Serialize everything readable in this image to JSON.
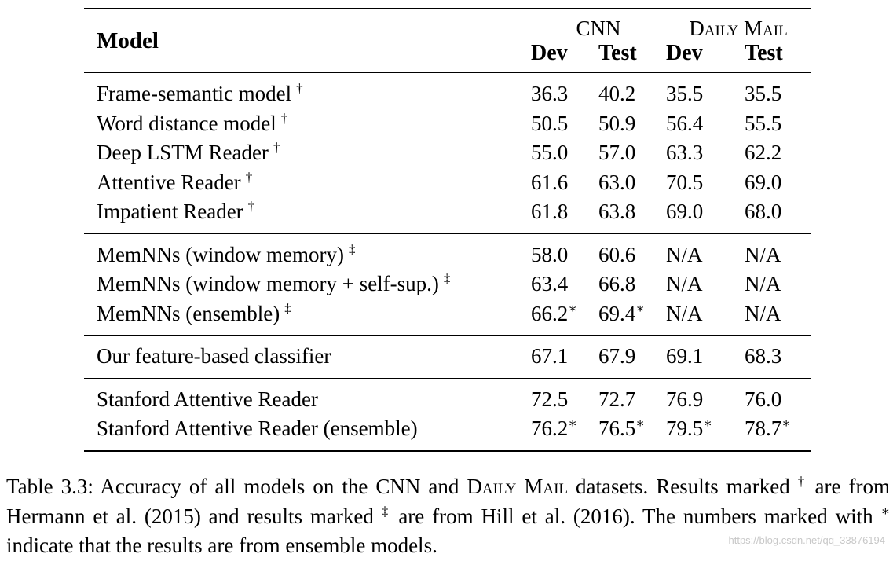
{
  "table": {
    "model_header": "Model",
    "groups": {
      "cnn": "CNN",
      "daily_mail": "Daily Mail"
    },
    "sub_headers": {
      "cnn_dev": "Dev",
      "cnn_test": "Test",
      "dm_dev": "Dev",
      "dm_test": "Test"
    },
    "sections": [
      {
        "rows": [
          {
            "model": "Frame-semantic model",
            "mark": "†",
            "cnn_dev": "36.3",
            "cnn_test": "40.2",
            "dm_dev": "35.5",
            "dm_test": "35.5"
          },
          {
            "model": "Word distance model",
            "mark": "†",
            "cnn_dev": "50.5",
            "cnn_test": "50.9",
            "dm_dev": "56.4",
            "dm_test": "55.5"
          },
          {
            "model": "Deep LSTM Reader",
            "mark": "†",
            "cnn_dev": "55.0",
            "cnn_test": "57.0",
            "dm_dev": "63.3",
            "dm_test": "62.2"
          },
          {
            "model": "Attentive Reader",
            "mark": "†",
            "cnn_dev": "61.6",
            "cnn_test": "63.0",
            "dm_dev": "70.5",
            "dm_test": "69.0"
          },
          {
            "model": "Impatient Reader",
            "mark": "†",
            "cnn_dev": "61.8",
            "cnn_test": "63.8",
            "dm_dev": "69.0",
            "dm_test": "68.0"
          }
        ]
      },
      {
        "rows": [
          {
            "model": "MemNNs (window memory)",
            "mark": "‡",
            "cnn_dev": "58.0",
            "cnn_test": "60.6",
            "dm_dev": "N/A",
            "dm_test": "N/A"
          },
          {
            "model": "MemNNs (window memory + self-sup.)",
            "mark": "‡",
            "cnn_dev": "63.4",
            "cnn_test": "66.8",
            "dm_dev": "N/A",
            "dm_test": "N/A"
          },
          {
            "model": "MemNNs (ensemble)",
            "mark": "‡",
            "cnn_dev": "66.2",
            "cnn_dev_star": "∗",
            "cnn_test": "69.4",
            "cnn_test_star": "∗",
            "dm_dev": "N/A",
            "dm_test": "N/A"
          }
        ]
      },
      {
        "rows": [
          {
            "model": "Our feature-based classifier",
            "cnn_dev": "67.1",
            "cnn_test": "67.9",
            "dm_dev": "69.1",
            "dm_test": "68.3"
          }
        ]
      },
      {
        "rows": [
          {
            "model": "Stanford Attentive Reader",
            "cnn_dev": "72.5",
            "cnn_test": "72.7",
            "dm_dev": "76.9",
            "dm_test": "76.0"
          },
          {
            "model": "Stanford Attentive Reader (ensemble)",
            "cnn_dev": "76.2",
            "cnn_dev_star": "∗",
            "cnn_test": "76.5",
            "cnn_test_star": "∗",
            "dm_dev": "79.5",
            "dm_dev_star": "∗",
            "dm_test": "78.7",
            "dm_test_star": "∗"
          }
        ]
      }
    ]
  },
  "caption": {
    "label": "Table 3.3:",
    "text_1": "Accuracy of all models on the CNN and",
    "daily_mail": "Daily Mail",
    "text_2": "datasets. Results marked",
    "dagger": "†",
    "text_3": "are from Hermann et al. (2015) and results marked",
    "ddagger": "‡",
    "text_4": "are from Hill et al. (2016). The numbers marked with",
    "star": "∗",
    "text_5": "indicate that the results are from ensemble models."
  },
  "watermark": "https://blog.csdn.net/qq_33876194"
}
